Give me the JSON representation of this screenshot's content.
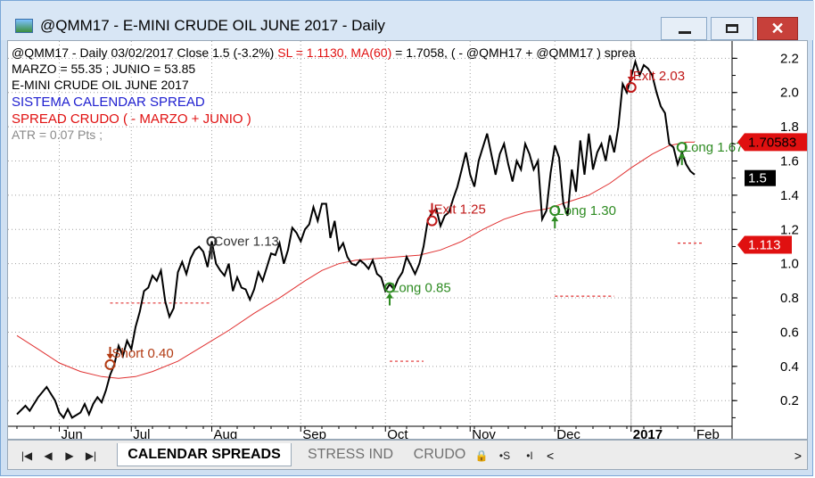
{
  "window": {
    "title": "@QMM17 - E-MINI CRUDE OIL JUNE 2017 - Daily"
  },
  "legend": {
    "line1": {
      "main": "@QMM17 - Daily 03/02/2017 Close 1.5 (-3.2%) ",
      "sl": "SL = 1.1130, ",
      "ma": "MA(60)",
      "ma_tail": " = 1.7058, ( - @QMH17 + @QMM17 ) sprea"
    },
    "line2": "MARZO = 55.35 ; JUNIO = 53.85",
    "line3": "E-MINI CRUDE OIL JUNE 2017",
    "line4": "SISTEMA CALENDAR SPREAD",
    "line5": "SPREAD CRUDO ( - MARZO +  JUNIO )",
    "line6": "ATR = 0.07 Pts ;"
  },
  "tabs": {
    "active": "CALENDAR SPREADS",
    "stress": "STRESS IND",
    "crudo": "CRUDO",
    "icons": [
      "lock-icon",
      "s-marker-icon",
      "i-marker-icon"
    ]
  },
  "chart_data": {
    "type": "line",
    "ylim": [
      0.05,
      2.28
    ],
    "yticks": [
      0.2,
      0.4,
      0.6,
      0.8,
      1.0,
      1.2,
      1.4,
      1.6,
      1.8,
      2.0,
      2.2
    ],
    "ytick_labels": [
      "0.2",
      "0.4",
      "0.6",
      "0.8",
      "1.0",
      "1.2",
      "1.4",
      "1.6",
      "1.8",
      "2.0",
      "2.2"
    ],
    "x_range": [
      0,
      160
    ],
    "months": [
      {
        "label": "Jun",
        "x": 10,
        "bold": false
      },
      {
        "label": "Jul",
        "x": 27,
        "bold": false
      },
      {
        "label": "Aug",
        "x": 46,
        "bold": false
      },
      {
        "label": "Sep",
        "x": 67,
        "bold": false
      },
      {
        "label": "Oct",
        "x": 87,
        "bold": false
      },
      {
        "label": "Nov",
        "x": 107,
        "bold": false
      },
      {
        "label": "Dec",
        "x": 127,
        "bold": false
      },
      {
        "label": "2017",
        "x": 145,
        "bold": true
      },
      {
        "label": "Feb",
        "x": 160,
        "bold": false
      }
    ],
    "price": [
      [
        0,
        0.12
      ],
      [
        2,
        0.17
      ],
      [
        3,
        0.14
      ],
      [
        5,
        0.22
      ],
      [
        7,
        0.28
      ],
      [
        9,
        0.2
      ],
      [
        10,
        0.13
      ],
      [
        11,
        0.1
      ],
      [
        12,
        0.15
      ],
      [
        13,
        0.1
      ],
      [
        15,
        0.13
      ],
      [
        16,
        0.18
      ],
      [
        17,
        0.12
      ],
      [
        18,
        0.18
      ],
      [
        19,
        0.22
      ],
      [
        20,
        0.19
      ],
      [
        21,
        0.26
      ],
      [
        22,
        0.35
      ],
      [
        23,
        0.41
      ],
      [
        24,
        0.52
      ],
      [
        25,
        0.46
      ],
      [
        26,
        0.55
      ],
      [
        27,
        0.5
      ],
      [
        28,
        0.63
      ],
      [
        29,
        0.72
      ],
      [
        30,
        0.84
      ],
      [
        31,
        0.86
      ],
      [
        32,
        0.93
      ],
      [
        33,
        0.9
      ],
      [
        34,
        0.96
      ],
      [
        35,
        0.78
      ],
      [
        36,
        0.69
      ],
      [
        37,
        0.74
      ],
      [
        38,
        0.95
      ],
      [
        39,
        1.01
      ],
      [
        40,
        0.94
      ],
      [
        41,
        1.03
      ],
      [
        42,
        1.08
      ],
      [
        43,
        1.1
      ],
      [
        44,
        1.07
      ],
      [
        45,
        0.98
      ],
      [
        46,
        1.13
      ],
      [
        47,
        1.0
      ],
      [
        48,
        0.96
      ],
      [
        49,
        0.93
      ],
      [
        50,
        1.0
      ],
      [
        51,
        0.84
      ],
      [
        52,
        0.92
      ],
      [
        53,
        0.86
      ],
      [
        54,
        0.85
      ],
      [
        55,
        0.79
      ],
      [
        56,
        0.85
      ],
      [
        57,
        0.95
      ],
      [
        58,
        0.9
      ],
      [
        59,
        0.98
      ],
      [
        60,
        1.06
      ],
      [
        61,
        1.05
      ],
      [
        62,
        1.12
      ],
      [
        63,
        1.0
      ],
      [
        64,
        1.08
      ],
      [
        65,
        1.21
      ],
      [
        66,
        1.18
      ],
      [
        67,
        1.13
      ],
      [
        68,
        1.2
      ],
      [
        69,
        1.23
      ],
      [
        70,
        1.33
      ],
      [
        71,
        1.25
      ],
      [
        72,
        1.35
      ],
      [
        73,
        1.35
      ],
      [
        74,
        1.15
      ],
      [
        75,
        1.25
      ],
      [
        76,
        1.08
      ],
      [
        77,
        1.12
      ],
      [
        78,
        1.04
      ],
      [
        79,
        1.0
      ],
      [
        80,
        0.99
      ],
      [
        81,
        1.02
      ],
      [
        82,
        1.0
      ],
      [
        83,
        0.97
      ],
      [
        84,
        1.02
      ],
      [
        85,
        0.94
      ],
      [
        86,
        0.92
      ],
      [
        87,
        0.84
      ],
      [
        88,
        0.88
      ],
      [
        89,
        0.85
      ],
      [
        90,
        0.91
      ],
      [
        91,
        0.95
      ],
      [
        92,
        1.04
      ],
      [
        93,
        0.99
      ],
      [
        94,
        0.94
      ],
      [
        95,
        1.0
      ],
      [
        96,
        1.1
      ],
      [
        97,
        1.25
      ],
      [
        98,
        1.3
      ],
      [
        99,
        1.32
      ],
      [
        100,
        1.22
      ],
      [
        101,
        1.28
      ],
      [
        102,
        1.3
      ],
      [
        103,
        1.38
      ],
      [
        104,
        1.45
      ],
      [
        105,
        1.55
      ],
      [
        106,
        1.65
      ],
      [
        107,
        1.52
      ],
      [
        108,
        1.45
      ],
      [
        109,
        1.6
      ],
      [
        110,
        1.68
      ],
      [
        111,
        1.76
      ],
      [
        112,
        1.64
      ],
      [
        113,
        1.52
      ],
      [
        114,
        1.64
      ],
      [
        115,
        1.7
      ],
      [
        116,
        1.58
      ],
      [
        117,
        1.48
      ],
      [
        118,
        1.6
      ],
      [
        119,
        1.55
      ],
      [
        120,
        1.7
      ],
      [
        121,
        1.64
      ],
      [
        122,
        1.55
      ],
      [
        123,
        1.6
      ],
      [
        124,
        1.26
      ],
      [
        125,
        1.31
      ],
      [
        126,
        1.53
      ],
      [
        127,
        1.69
      ],
      [
        128,
        1.62
      ],
      [
        129,
        1.35
      ],
      [
        130,
        1.28
      ],
      [
        131,
        1.55
      ],
      [
        132,
        1.42
      ],
      [
        133,
        1.72
      ],
      [
        134,
        1.52
      ],
      [
        135,
        1.76
      ],
      [
        136,
        1.55
      ],
      [
        137,
        1.65
      ],
      [
        138,
        1.7
      ],
      [
        139,
        1.6
      ],
      [
        140,
        1.75
      ],
      [
        141,
        1.65
      ],
      [
        142,
        1.8
      ],
      [
        143,
        2.05
      ],
      [
        144,
        2.0
      ],
      [
        145,
        2.09
      ],
      [
        146,
        2.18
      ],
      [
        147,
        2.1
      ],
      [
        148,
        2.16
      ],
      [
        149,
        2.14
      ],
      [
        150,
        2.1
      ],
      [
        151,
        2.0
      ],
      [
        152,
        1.92
      ],
      [
        153,
        1.88
      ],
      [
        154,
        1.7
      ],
      [
        155,
        1.68
      ],
      [
        156,
        1.58
      ],
      [
        157,
        1.65
      ],
      [
        158,
        1.58
      ],
      [
        159,
        1.54
      ],
      [
        160,
        1.52
      ]
    ],
    "ma60": [
      [
        0,
        0.58
      ],
      [
        5,
        0.5
      ],
      [
        10,
        0.42
      ],
      [
        15,
        0.37
      ],
      [
        20,
        0.34
      ],
      [
        24,
        0.33
      ],
      [
        28,
        0.34
      ],
      [
        32,
        0.37
      ],
      [
        38,
        0.43
      ],
      [
        44,
        0.52
      ],
      [
        50,
        0.61
      ],
      [
        56,
        0.71
      ],
      [
        62,
        0.8
      ],
      [
        68,
        0.9
      ],
      [
        72,
        0.96
      ],
      [
        76,
        1.0
      ],
      [
        80,
        1.02
      ],
      [
        85,
        1.03
      ],
      [
        90,
        1.04
      ],
      [
        95,
        1.05
      ],
      [
        100,
        1.08
      ],
      [
        105,
        1.13
      ],
      [
        110,
        1.2
      ],
      [
        115,
        1.26
      ],
      [
        120,
        1.3
      ],
      [
        125,
        1.32
      ],
      [
        130,
        1.36
      ],
      [
        135,
        1.4
      ],
      [
        140,
        1.47
      ],
      [
        145,
        1.56
      ],
      [
        150,
        1.64
      ],
      [
        154,
        1.69
      ],
      [
        158,
        1.71
      ],
      [
        160,
        1.71
      ]
    ],
    "signals": [
      {
        "label": "Short 0.40",
        "x": 22,
        "y": 0.41,
        "dir": "down",
        "color": "#b23a12"
      },
      {
        "label": "Cover 1.13",
        "x": 46,
        "y": 1.13,
        "dir": "up",
        "color": "#333333"
      },
      {
        "label": "Long 0.85",
        "x": 88,
        "y": 0.86,
        "dir": "up",
        "color": "#2e8b22"
      },
      {
        "label": "Exit 1.25",
        "x": 98,
        "y": 1.25,
        "dir": "down",
        "color": "#c01818"
      },
      {
        "label": "Long 1.30",
        "x": 127,
        "y": 1.31,
        "dir": "up",
        "color": "#2e8b22"
      },
      {
        "label": "Exit 2.03",
        "x": 145,
        "y": 2.03,
        "dir": "down",
        "color": "#c01818"
      },
      {
        "label": "Long 1.67",
        "x": 157,
        "y": 1.68,
        "dir": "up",
        "color": "#2e8b22"
      }
    ],
    "stop_levels": [
      {
        "x0": 22,
        "x1": 46,
        "y": 0.77
      },
      {
        "x0": 88,
        "x1": 96,
        "y": 0.43
      },
      {
        "x0": 127,
        "x1": 141,
        "y": 0.81
      },
      {
        "x0": 156,
        "x1": 162,
        "y": 1.12
      }
    ],
    "vline_x": 145,
    "markers": [
      {
        "label": "1.70583",
        "y": 1.71,
        "color": "#e01010",
        "text_color": "#000000"
      },
      {
        "label": "1.5",
        "y": 1.5,
        "color": "#000000",
        "text_color": "#ffffff"
      },
      {
        "label": "1.113",
        "y": 1.11,
        "color": "#e01010",
        "text_color": "#ffffff"
      }
    ]
  }
}
